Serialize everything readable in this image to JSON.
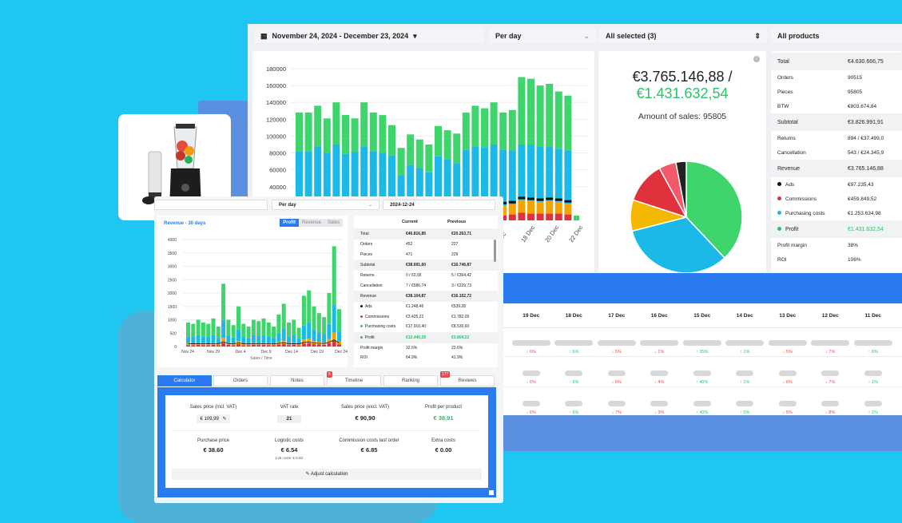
{
  "top": {
    "date_range": "November 24, 2024 - December 23, 2024",
    "period": "Per day",
    "selection": "All selected (3)",
    "products": "All products"
  },
  "main_chart": {
    "yticks": [
      "180000",
      "160000",
      "140000",
      "120000",
      "100000",
      "80000",
      "60000",
      "40000"
    ],
    "xticks": [
      "Dec",
      "18 Dec",
      "20 Dec",
      "22 Dec"
    ]
  },
  "summary": {
    "amount": "€3.765.146,88 /",
    "profit": "€1.431.632,54",
    "sales_label": "Amount of sales: 95805",
    "info": "i"
  },
  "right_table": [
    {
      "label": "Total",
      "value": "€4.630.666,75",
      "type": "sh"
    },
    {
      "label": "Orders",
      "value": "90515"
    },
    {
      "label": "Pieces",
      "value": "95805"
    },
    {
      "label": "BTW",
      "value": "€803.674,84"
    },
    {
      "label": "Subtotal",
      "value": "€3.826.991,91",
      "type": "sh"
    },
    {
      "label": "Returns",
      "value": "894 / €37.499,0"
    },
    {
      "label": "Cancellation",
      "value": "543 / €24.345,9"
    },
    {
      "label": "Revenue",
      "value": "€3.765.146,88",
      "type": "sh"
    },
    {
      "label": "Ads",
      "value": "€97.235,43",
      "dot": "#111"
    },
    {
      "label": "Commissions",
      "value": "€459.849,52",
      "dot": "#e0323c"
    },
    {
      "label": "Purchasing costs",
      "value": "€1.253.634,98",
      "dot": "#1ab9e8"
    },
    {
      "label": "Profit",
      "value": "€1.431.632,54",
      "dot": "#27c466",
      "type": "sh",
      "green": true
    },
    {
      "label": "Profit margin",
      "value": "38%"
    },
    {
      "label": "ROI",
      "value": "106%"
    }
  ],
  "days": {
    "headers": [
      "19 Dec",
      "18 Dec",
      "17 Dec",
      "16 Dec",
      "15 Dec",
      "14 Dec",
      "13 Dec",
      "12 Dec",
      "11 Dec"
    ],
    "rows": [
      [
        "↓ 6%",
        "↑ 5%",
        "↓ 5%",
        "↓ 1%",
        "↑ 35%",
        "↑ 1%",
        "↓ 5%",
        "↓ 7%",
        "↑ 6%"
      ],
      [
        "↓ 6%",
        "↑ 6%",
        "↓ 6%",
        "↓ 4%",
        "↑ 40%",
        "↑ 1%",
        "↓ 6%",
        "↓ 7%",
        "↑ 1%"
      ],
      [
        "↓ 6%",
        "↑ 6%",
        "↓ 7%",
        "↓ 3%",
        "↑ 40%",
        "↑ 0%",
        "↓ 5%",
        "↓ 8%",
        "↑ 2%"
      ]
    ],
    "dirs": [
      [
        "dn",
        "up",
        "dn",
        "dn",
        "up",
        "up",
        "dn",
        "dn",
        "up"
      ],
      [
        "dn",
        "up",
        "dn",
        "dn",
        "up",
        "up",
        "dn",
        "dn",
        "up"
      ],
      [
        "dn",
        "up",
        "dn",
        "dn",
        "up",
        "up",
        "dn",
        "dn",
        "up"
      ]
    ]
  },
  "panel": {
    "period": "Per day",
    "date": "2024-12-24",
    "chart_title": "Revenue - 30 days",
    "toggle": [
      "Profit",
      "Revenue",
      "Sales"
    ],
    "yticks": [
      "4000",
      "3500",
      "3000",
      "2500",
      "2000",
      "1500",
      "1000",
      "500",
      "0"
    ],
    "xticks": [
      "Nov 24",
      "Nov 29",
      "Dec 4",
      "Dec 9",
      "Dec 14",
      "Dec 19",
      "Dec 24"
    ],
    "xlabel": "Sales / Time",
    "col_current": "Current",
    "col_previous": "Previous",
    "rows": [
      {
        "label": "Total",
        "cur": "€46.816,85",
        "prev": "€20.263,71",
        "type": "sh"
      },
      {
        "label": "Orders",
        "cur": "452",
        "prev": "227"
      },
      {
        "label": "Pieces",
        "cur": "471",
        "prev": "229"
      },
      {
        "label": "Subtotal",
        "cur": "€38.691,60",
        "prev": "€16.746,87",
        "type": "sh"
      },
      {
        "label": "Returns",
        "cur": "0 / €0,00",
        "prev": "5 / €364,42"
      },
      {
        "label": "Cancellation",
        "cur": "7 / €586,74",
        "prev": "3 / €229,73"
      },
      {
        "label": "Revenue",
        "cur": "€38.104,87",
        "prev": "€16.152,72",
        "type": "sh"
      },
      {
        "label": "Ads",
        "cur": "€1.248,46",
        "prev": "€539,28",
        "dot": "#111"
      },
      {
        "label": "Commissions",
        "cur": "€3.425,22",
        "prev": "€1.782,05",
        "dot": "#e0323c"
      },
      {
        "label": "Purchasing costs",
        "cur": "€17.910,40",
        "prev": "€8.530,60",
        "dot": "#1ab9e8"
      },
      {
        "label": "Profit",
        "cur": "€12.440,28",
        "prev": "€3.804,22",
        "dot": "#27c466",
        "type": "sh",
        "green": true
      },
      {
        "label": "Profit margin",
        "cur": "32.6%",
        "prev": "23.6%"
      },
      {
        "label": "ROI",
        "cur": "64.9%",
        "prev": "41.9%"
      }
    ],
    "tabs": [
      "Calculator",
      "Orders",
      "Notes",
      "Timeline",
      "Ranking",
      "Reviews"
    ],
    "notes_badge": "5",
    "reviews_badge": "177",
    "calc": {
      "sales_price_label": "Sales price (incl. VAT)",
      "sales_price": "€ 109,99",
      "vat_label": "VAT rate",
      "vat": "21",
      "sales_excl_label": "Sales price (excl. VAT)",
      "sales_excl": "€ 90,90",
      "profit_label": "Profit per product",
      "profit": "€ 38,91",
      "purchase_label": "Purchase price",
      "purchase": "€ 38.60",
      "logistic_label": "Logistic costs",
      "logistic": "€ 6.54",
      "logistic_sub": "Lvb costs: € 6.82",
      "commission_label": "Commission costs last order",
      "commission": "€ 6.85",
      "extra_label": "Extra costs",
      "extra": "€ 0.00",
      "adjust": "Adjust calculation"
    }
  },
  "colors": {
    "green": "#27c466",
    "blue": "#1ab9e8",
    "red": "#e0323c",
    "orange": "#f5a300",
    "accent": "#2a7bf0"
  }
}
